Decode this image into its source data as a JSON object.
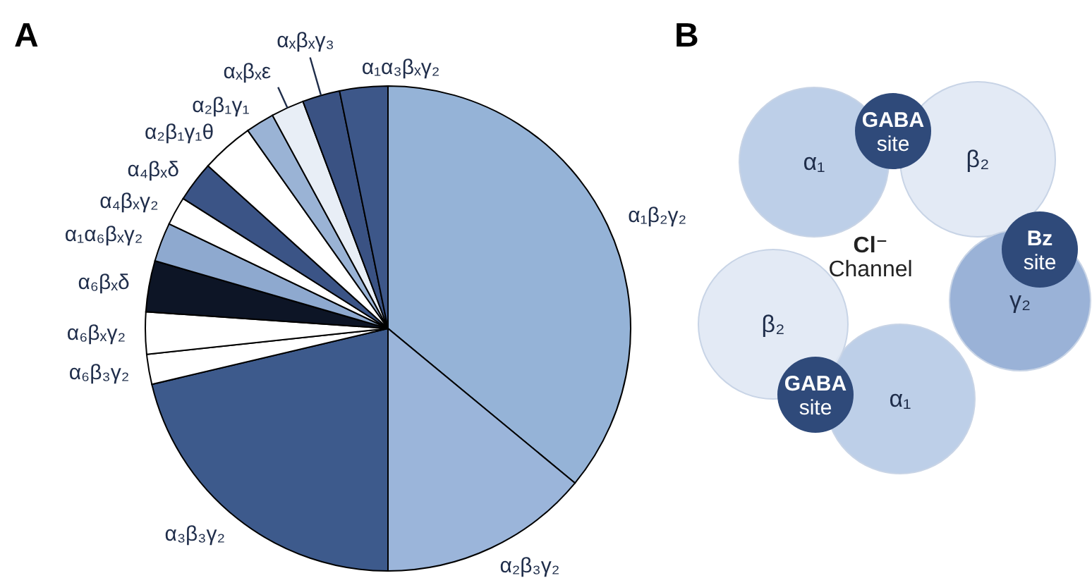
{
  "chart_data": [
    {
      "type": "pie",
      "title": "A",
      "categories": [
        "α₁β₂γ₂",
        "α₂β₃γ₂",
        "α₃β₃γ₂",
        "α₆β₃γ₂",
        "α₆βₓγ₂",
        "α₆βₓδ",
        "α₁α₆βₓγ₂",
        "α₄βₓγ₂",
        "α₄βₓδ",
        "α₂β₁γ₁θ",
        "α₂β₁γ₁",
        "αₓβₓε",
        "αₓβₓγ₃",
        "α₁α₃βₓγ₂"
      ],
      "values": [
        36,
        14,
        21.3,
        2,
        2.8,
        3.4,
        2.6,
        1.9,
        2.7,
        3.5,
        1.9,
        2.2,
        2.5,
        3.2
      ],
      "colors": [
        "#95b3d7",
        "#9bb5da",
        "#3d5a8c",
        "#ffffff",
        "#ffffff",
        "#0d1526",
        "#8ea9cf",
        "#ffffff",
        "#3b5486",
        "#ffffff",
        "#9ab3d5",
        "#e8eef6",
        "#3a5283",
        "#3d5789"
      ]
    },
    {
      "type": "other",
      "title": "B",
      "annotations": [
        "α₁",
        "β₂",
        "γ₂",
        "α₁",
        "β₂",
        "GABA site",
        "Bz site",
        "GABA site",
        "Cl⁻ Channel"
      ]
    }
  ]
}
